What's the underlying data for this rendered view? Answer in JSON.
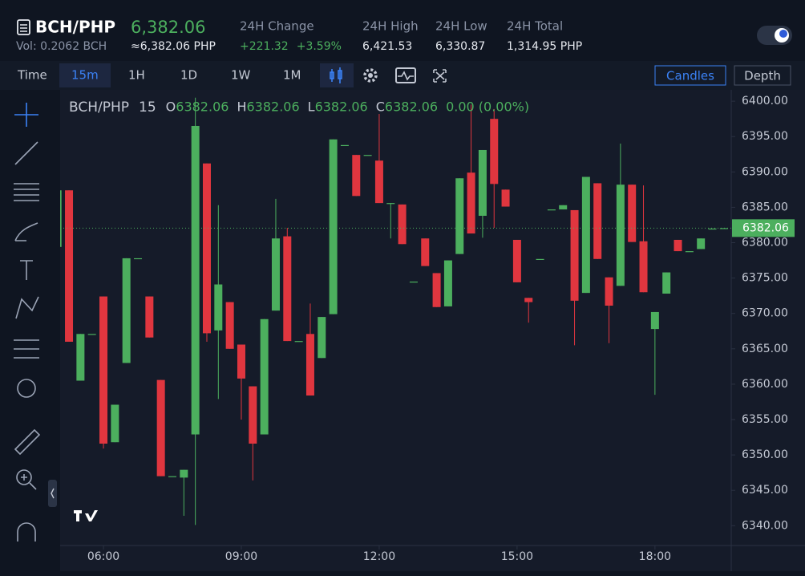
{
  "header": {
    "symbol": "BCH/PHP",
    "price": "6,382.06",
    "volume": "Vol: 0.2062 BCH",
    "approx": "≈6,382.06 PHP",
    "stats": [
      {
        "label": "24H Change",
        "values": [
          "+221.32",
          "+3.59%"
        ]
      },
      {
        "label": "24H High",
        "values": [
          "6,421.53"
        ]
      },
      {
        "label": "24H Low",
        "values": [
          "6,330.87"
        ]
      },
      {
        "label": "24H Total",
        "values": [
          "1,314.95 PHP"
        ]
      }
    ]
  },
  "toolbar": {
    "intervals": [
      "Time",
      "15m",
      "1H",
      "1D",
      "1W",
      "1M"
    ],
    "active": 1,
    "views": [
      "Candles",
      "Depth"
    ]
  },
  "chart_data": {
    "type": "candlestick",
    "legend": {
      "symbol": "BCH/PHP",
      "interval": "15",
      "items": [
        {
          "label": "O",
          "value": "6382.06"
        },
        {
          "label": "H",
          "value": "6382.06"
        },
        {
          "label": "L",
          "value": "6382.06"
        },
        {
          "label": "C",
          "value": "6382.06"
        }
      ],
      "change": "0.00 (0.00%)"
    },
    "categories": [
      null,
      null,
      null,
      null,
      "06:00",
      null,
      null,
      null,
      null,
      null,
      null,
      null,
      null,
      null,
      null,
      null,
      "09:00",
      null,
      null,
      null,
      null,
      null,
      null,
      null,
      null,
      null,
      null,
      null,
      "12:00",
      null,
      null,
      null,
      null,
      null,
      null,
      null,
      null,
      null,
      null,
      null,
      "15:00",
      null,
      null,
      null,
      null,
      null,
      null,
      null,
      null,
      null,
      null,
      null,
      "18:00",
      null,
      null,
      null,
      null,
      null,
      null
    ],
    "open": [
      6379.4,
      6387.4,
      6360.5,
      6367.1,
      6372.4,
      6351.8,
      6363.0,
      6377.8,
      6372.4,
      6360.6,
      6347.0,
      6346.8,
      6352.9,
      6391.2,
      6367.6,
      6371.6,
      6365.6,
      6359.7,
      6352.9,
      6370.4,
      6380.9,
      6366.1,
      6367.1,
      6363.7,
      6369.9,
      6393.8,
      6392.4,
      6392.4,
      6391.6,
      6385.6,
      6385.4,
      6374.5,
      6380.6,
      6375.7,
      6371.0,
      6378.4,
      6389.9,
      6383.8,
      6397.5,
      6387.5,
      6380.4,
      6372.2,
      6377.7,
      6384.7,
      6384.7,
      6384.6,
      6372.9,
      6388.4,
      6375.1,
      6373.9,
      6388.2,
      6380.2,
      6367.8,
      6372.8,
      6380.4,
      6378.8,
      6379.1,
      6382.0,
      6382.06
    ],
    "high": [
      6387.4,
      6387.4,
      6367.1,
      6367.1,
      6372.4,
      6357.1,
      6377.8,
      6377.8,
      6372.4,
      6360.6,
      6347.0,
      6347.9,
      6400.5,
      6391.2,
      6385.3,
      6371.6,
      6365.6,
      6359.7,
      6369.2,
      6386.2,
      6382.1,
      6366.1,
      6371.4,
      6369.5,
      6394.6,
      6393.8,
      6392.4,
      6392.4,
      6398.2,
      6385.6,
      6385.4,
      6374.5,
      6380.6,
      6375.7,
      6377.5,
      6389.1,
      6399.5,
      6393.1,
      6398.9,
      6387.5,
      6380.4,
      6372.2,
      6377.7,
      6384.7,
      6385.3,
      6384.6,
      6389.3,
      6388.4,
      6375.1,
      6394.0,
      6388.2,
      6388.1,
      6370.2,
      6375.8,
      6380.4,
      6378.8,
      6380.6,
      6382.0,
      6382.06
    ],
    "low": [
      6379.4,
      6366.0,
      6360.5,
      6367.1,
      6350.9,
      6351.8,
      6363.0,
      6377.8,
      6366.6,
      6347.0,
      6347.0,
      6341.4,
      6340.1,
      6366.0,
      6357.9,
      6365.0,
      6355.0,
      6346.4,
      6352.9,
      6370.4,
      6366.1,
      6366.1,
      6358.4,
      6363.7,
      6369.9,
      6393.8,
      6386.6,
      6392.4,
      6385.6,
      6380.6,
      6379.8,
      6374.5,
      6376.7,
      6370.9,
      6371.0,
      6378.4,
      6381.3,
      6380.7,
      6382.1,
      6385.1,
      6374.4,
      6368.7,
      6377.7,
      6384.7,
      6384.7,
      6365.5,
      6372.9,
      6377.7,
      6365.8,
      6373.9,
      6380.1,
      6373.0,
      6358.5,
      6372.8,
      6378.8,
      6378.8,
      6379.1,
      6382.0,
      6382.06
    ],
    "close": [
      6387.4,
      6366.0,
      6367.1,
      6367.1,
      6351.6,
      6357.1,
      6377.8,
      6377.8,
      6366.6,
      6347.0,
      6347.0,
      6347.9,
      6396.5,
      6367.2,
      6374.1,
      6365.0,
      6360.8,
      6351.6,
      6369.2,
      6380.6,
      6366.1,
      6366.1,
      6358.4,
      6369.5,
      6394.6,
      6393.8,
      6386.6,
      6392.4,
      6385.6,
      6385.6,
      6379.8,
      6374.5,
      6376.7,
      6370.9,
      6377.5,
      6389.1,
      6381.3,
      6393.1,
      6388.3,
      6385.1,
      6374.4,
      6371.6,
      6377.7,
      6384.7,
      6385.3,
      6371.8,
      6389.3,
      6377.7,
      6371.1,
      6388.2,
      6380.1,
      6373.0,
      6370.2,
      6375.8,
      6378.8,
      6378.8,
      6380.6,
      6382.0,
      6382.06
    ],
    "up_color": "#4caf5e",
    "down_color": "#e0363f",
    "ylim": [
      6337.2,
      6401.6
    ],
    "yticks": [
      {
        "value": 6340,
        "label": "6340.00"
      },
      {
        "value": 6345,
        "label": "6345.00"
      },
      {
        "value": 6350,
        "label": "6350.00"
      },
      {
        "value": 6355,
        "label": "6355.00"
      },
      {
        "value": 6360,
        "label": "6360.00"
      },
      {
        "value": 6365,
        "label": "6365.00"
      },
      {
        "value": 6370,
        "label": "6370.00"
      },
      {
        "value": 6375,
        "label": "6375.00"
      },
      {
        "value": 6380,
        "label": "6380.00"
      },
      {
        "value": 6385,
        "label": "6385.00"
      },
      {
        "value": 6390,
        "label": "6390.00"
      },
      {
        "value": 6395,
        "label": "6395.00"
      },
      {
        "value": 6400,
        "label": "6400.00"
      }
    ],
    "last_price": 6382.06,
    "grid": false
  }
}
